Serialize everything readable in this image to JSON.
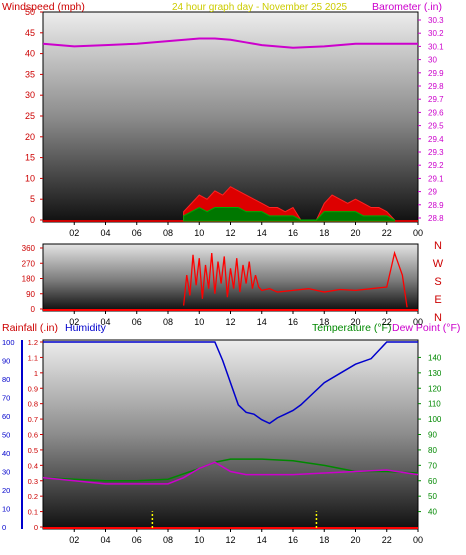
{
  "header": {
    "windspeed_label": "Windspeed (mph)",
    "title": "24 hour graph day - November 25 2025",
    "barometer_label": "Barometer (.in)"
  },
  "bottom_header": {
    "rainfall_label": "Rainfall (.in)",
    "humidity_label": "Humidity",
    "temperature_label": "Temperature (°F)",
    "dewpoint_label": "Dew Point (°F)"
  },
  "colors": {
    "windspeed": "#cc0000",
    "barometer": "#cc00cc",
    "title": "#cccc00",
    "humidity": "#0000cc",
    "temperature": "#008800",
    "rain": "#ff0000",
    "direction": "#ff0000"
  },
  "chart_data": [
    {
      "type": "line",
      "name": "wind-barometer",
      "x_ticks": [
        "02",
        "04",
        "06",
        "08",
        "10",
        "12",
        "14",
        "16",
        "18",
        "20",
        "22",
        "00"
      ],
      "y_left_ticks": [
        "0",
        "5",
        "10",
        "15",
        "20",
        "25",
        "30",
        "35",
        "40",
        "45",
        "50"
      ],
      "y_left_range": [
        0,
        50
      ],
      "y_right_ticks": [
        "28.8",
        "28.9",
        "29",
        "29.1",
        "29.2",
        "29.3",
        "29.4",
        "29.5",
        "29.6",
        "29.7",
        "29.8",
        "29.9",
        "30",
        "30.1",
        "30.2",
        "30.3"
      ],
      "y_right_range": [
        28.8,
        30.3
      ],
      "barometer": {
        "x": [
          0,
          2,
          4,
          6,
          8,
          10,
          11,
          12,
          13,
          14,
          16,
          18,
          20,
          22,
          24
        ],
        "y": [
          30.12,
          30.1,
          30.11,
          30.12,
          30.14,
          30.16,
          30.16,
          30.15,
          30.13,
          30.11,
          30.09,
          30.1,
          30.12,
          30.12,
          30.12
        ]
      },
      "wind_gust": {
        "x": [
          9,
          9.5,
          10,
          10.5,
          11,
          11.5,
          12,
          12.5,
          13,
          13.5,
          14,
          14.5,
          15,
          15.5,
          16,
          16.5,
          17,
          17.5,
          18,
          18.5,
          19,
          19.5,
          20,
          20.5,
          21,
          21.5,
          22,
          22.5
        ],
        "y": [
          2,
          4,
          6,
          5,
          7,
          6,
          8,
          7,
          6,
          5,
          4,
          3,
          3,
          2,
          3,
          0,
          0,
          0,
          4,
          6,
          5,
          4,
          5,
          4,
          3,
          3,
          2,
          0
        ]
      },
      "wind_avg": {
        "x": [
          9,
          9.5,
          10,
          10.5,
          11,
          11.5,
          12,
          12.5,
          13,
          13.5,
          14,
          14.5,
          15,
          15.5,
          16,
          16.5,
          17,
          17.5,
          18,
          18.5,
          19,
          19.5,
          20,
          20.5,
          21,
          21.5,
          22,
          22.5
        ],
        "y": [
          1,
          2,
          3,
          2,
          3,
          3,
          3,
          3,
          2,
          2,
          2,
          1,
          1,
          1,
          1,
          0,
          0,
          0,
          2,
          2,
          2,
          2,
          2,
          1,
          1,
          1,
          1,
          0
        ]
      }
    },
    {
      "type": "line",
      "name": "wind-direction",
      "x_ticks": [
        "02",
        "04",
        "06",
        "08",
        "10",
        "12",
        "14",
        "16",
        "18",
        "20",
        "22",
        "00"
      ],
      "y_ticks": [
        "0",
        "90",
        "180",
        "270",
        "360"
      ],
      "y_range": [
        0,
        360
      ],
      "compass_labels": [
        "N",
        "W",
        "S",
        "E",
        "N"
      ],
      "direction": {
        "x": [
          9,
          9.2,
          9.4,
          9.6,
          9.8,
          10,
          10.2,
          10.4,
          10.6,
          10.8,
          11,
          11.2,
          11.4,
          11.6,
          11.8,
          12,
          12.2,
          12.4,
          12.6,
          12.8,
          13,
          13.2,
          13.4,
          13.6,
          13.8,
          14,
          14.5,
          15,
          16,
          17,
          18,
          19,
          20,
          21,
          22,
          22.5,
          23,
          23.3
        ],
        "y": [
          20,
          200,
          80,
          320,
          140,
          300,
          60,
          260,
          120,
          330,
          90,
          280,
          150,
          310,
          70,
          240,
          120,
          300,
          100,
          260,
          150,
          280,
          120,
          200,
          130,
          110,
          120,
          100,
          110,
          120,
          100,
          115,
          110,
          120,
          130,
          330,
          200,
          10
        ]
      }
    },
    {
      "type": "line",
      "name": "temp-humidity-rain",
      "x_ticks": [
        "02",
        "04",
        "06",
        "08",
        "10",
        "12",
        "14",
        "16",
        "18",
        "20",
        "22",
        "00"
      ],
      "y_humidity_ticks": [
        "0",
        "10",
        "20",
        "30",
        "40",
        "50",
        "60",
        "70",
        "80",
        "90",
        "100"
      ],
      "y_humidity_range": [
        0,
        100
      ],
      "y_rain_ticks": [
        "0",
        "0.1",
        "0.2",
        "0.3",
        "0.4",
        "0.5",
        "0.6",
        "0.7",
        "0.8",
        "0.9",
        "1",
        "1.1",
        "1.2"
      ],
      "y_rain_range": [
        0,
        1.2
      ],
      "y_temp_ticks": [
        "40",
        "50",
        "60",
        "70",
        "80",
        "90",
        "100",
        "110",
        "120",
        "130",
        "140"
      ],
      "y_temp_range": [
        30,
        150
      ],
      "humidity": {
        "x": [
          0,
          2,
          4,
          6,
          8,
          10,
          11,
          11.5,
          12,
          12.5,
          13,
          13.5,
          14,
          14.5,
          15,
          15.5,
          16,
          16.5,
          17,
          18,
          19,
          20,
          21,
          22,
          23,
          24
        ],
        "y": [
          100,
          100,
          100,
          100,
          100,
          100,
          100,
          90,
          78,
          66,
          62,
          61,
          58,
          56,
          59,
          61,
          63,
          66,
          70,
          78,
          83,
          88,
          91,
          100,
          100,
          100
        ]
      },
      "temperature": {
        "x": [
          0,
          2,
          4,
          6,
          8,
          10,
          11,
          12,
          14,
          16,
          18,
          20,
          22,
          24
        ],
        "y": [
          62,
          61,
          60,
          60,
          61,
          68,
          72,
          74,
          74,
          73,
          70,
          66,
          66,
          65
        ]
      },
      "dewpoint": {
        "x": [
          0,
          2,
          4,
          6,
          8,
          9,
          10,
          11,
          12,
          13,
          14,
          16,
          18,
          20,
          22,
          24
        ],
        "y": [
          62,
          60,
          58,
          58,
          58,
          62,
          68,
          72,
          66,
          64,
          64,
          64,
          65,
          66,
          67,
          64
        ]
      },
      "rain": {
        "x": [
          7,
          17.5
        ],
        "y": [
          0.05,
          0.05
        ]
      }
    }
  ]
}
